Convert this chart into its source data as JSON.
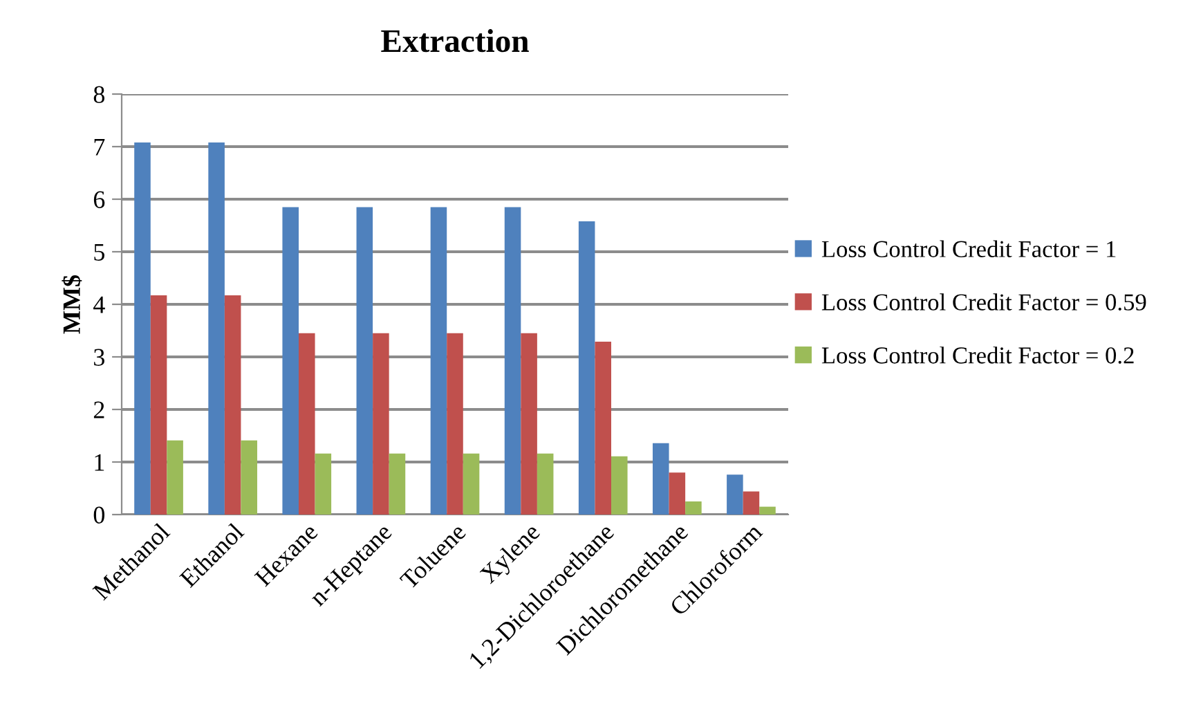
{
  "chart_data": {
    "type": "bar",
    "title": "Extraction",
    "ylabel": "MM$",
    "categories": [
      "Methanol",
      "Ethanol",
      "Hexane",
      "n-Heptane",
      "Toluene",
      "Xylene",
      "1,2-Dichloroethane",
      "Dichloromethane",
      "Chloroform"
    ],
    "series": [
      {
        "name": "Loss Control Credit Factor = 1",
        "color": "#4f81bd",
        "values": [
          7.08,
          7.08,
          5.85,
          5.85,
          5.85,
          5.85,
          5.58,
          1.36,
          0.76
        ]
      },
      {
        "name": "Loss Control Credit Factor = 0.59",
        "color": "#c0504d",
        "values": [
          4.17,
          4.17,
          3.45,
          3.45,
          3.45,
          3.45,
          3.29,
          0.8,
          0.44
        ]
      },
      {
        "name": "Loss Control Credit Factor = 0.2",
        "color": "#9bbb59",
        "values": [
          1.41,
          1.41,
          1.16,
          1.16,
          1.16,
          1.16,
          1.11,
          0.25,
          0.15
        ]
      }
    ],
    "ylim": [
      0,
      8
    ],
    "yticks": [
      0,
      1,
      2,
      3,
      4,
      5,
      6,
      7,
      8
    ],
    "grid": "y",
    "legend": "right"
  }
}
